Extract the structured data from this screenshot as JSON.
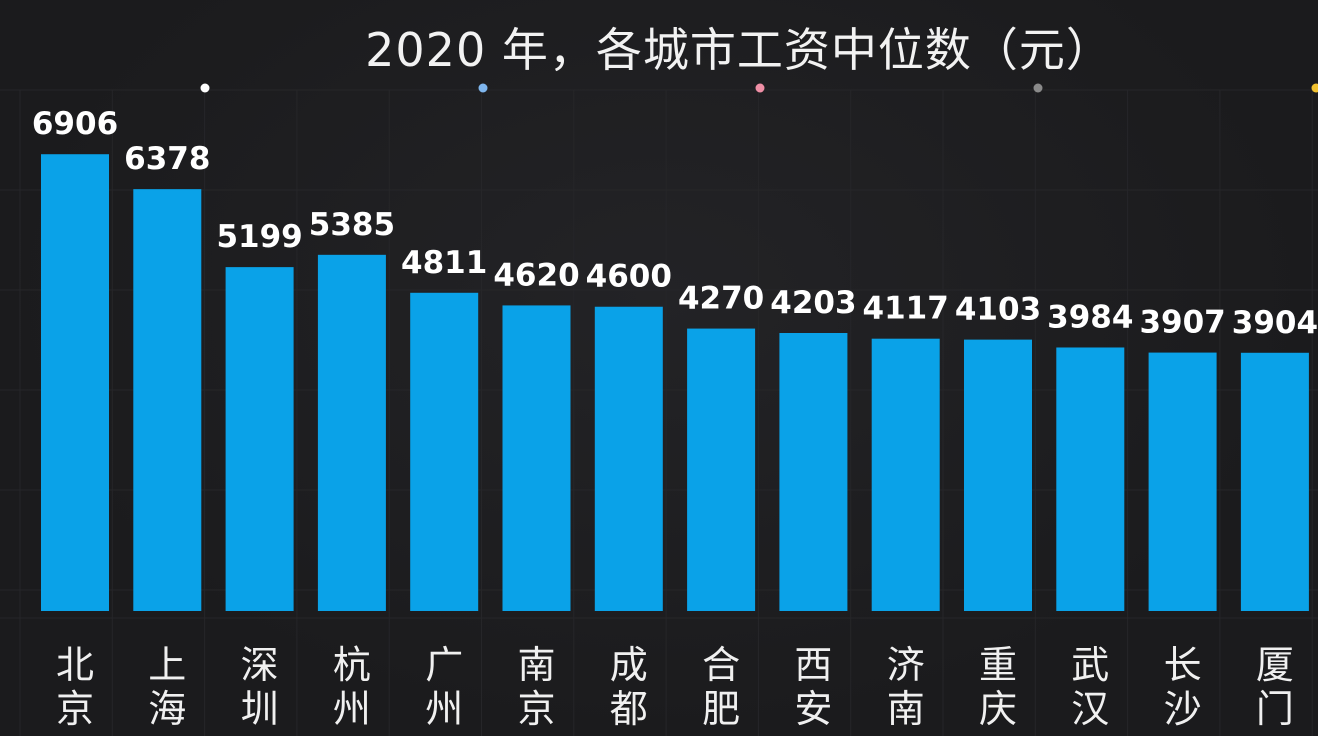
{
  "chart_data": {
    "type": "bar",
    "title": "2020 年，各城市工资中位数（元）",
    "categories": [
      "北京",
      "上海",
      "深圳",
      "杭州",
      "广州",
      "南京",
      "成都",
      "合肥",
      "西安",
      "济南",
      "重庆",
      "武汉",
      "长沙",
      "厦门"
    ],
    "values": [
      6906,
      6378,
      5199,
      5385,
      4811,
      4620,
      4600,
      4270,
      4203,
      4117,
      4103,
      3984,
      3907,
      3904
    ],
    "value_labels": [
      "6906",
      "6378",
      "5199",
      "5385",
      "4811",
      "4620",
      "4600",
      "4270",
      "4203",
      "4117",
      "4103",
      "3984",
      "3907",
      "3904"
    ],
    "ylim": [
      0,
      7000
    ],
    "xlabel": "",
    "ylabel": "",
    "grid": true,
    "legend": "none",
    "bar_color": "#0aa2e8",
    "background_color": "#1b1b1d",
    "marker_dot_colors": [
      "#ffffff",
      "#7fb6ee",
      "#ef8fa6",
      "#8a8a8a",
      "#f2c230"
    ]
  }
}
